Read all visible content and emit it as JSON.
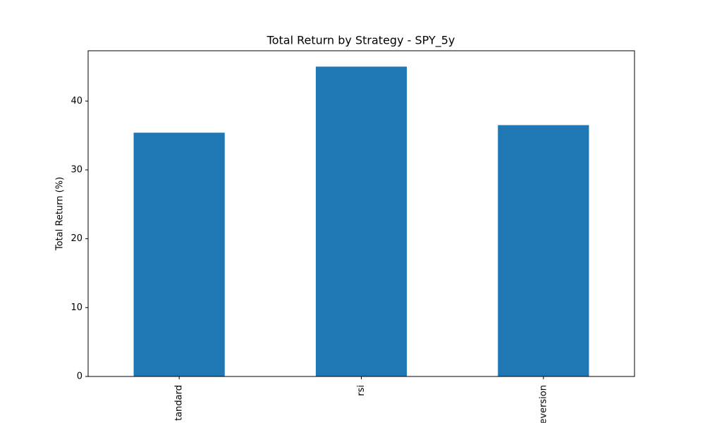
{
  "chart_data": {
    "type": "bar",
    "title": "Total Return by Strategy - SPY_5y",
    "y_label": "Total Return (%)",
    "categories": [
      "tandard",
      "rsi",
      "eversion"
    ],
    "values": [
      35.4,
      45.0,
      36.5
    ],
    "color": "#1f77b4",
    "ylim": [
      0,
      47.3
    ],
    "yticks": [
      0,
      10,
      20,
      30,
      40
    ],
    "grid": false
  }
}
